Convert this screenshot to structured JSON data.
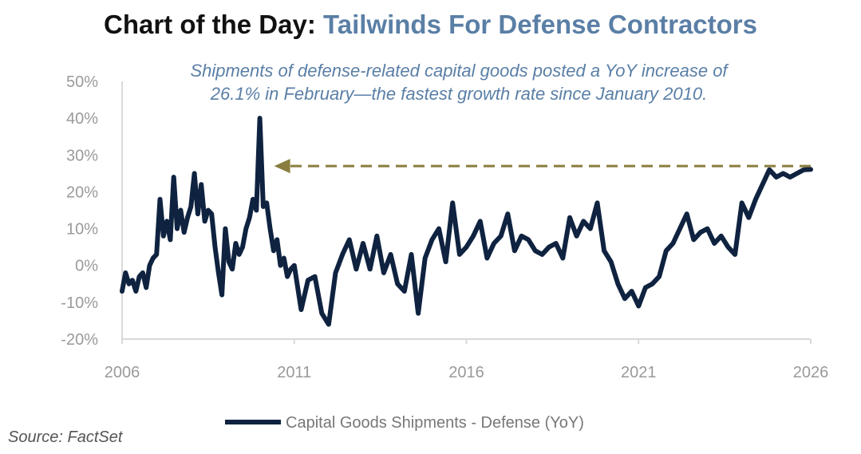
{
  "header": {
    "title_prefix": "Chart of the Day: ",
    "title_main": "Tailwinds For Defense Contractors",
    "subtitle_line1": "Shipments of defense-related capital goods posted a YoY increase of",
    "subtitle_line2": "26.1% in February—the fastest growth rate since January 2010."
  },
  "source": "Source: FactSet",
  "colors": {
    "series": "#0f2340",
    "annotation_arrow": "#8a7d3e",
    "title_accent": "#5a7fa6",
    "axis": "#d9d9d9"
  },
  "chart_data": {
    "type": "line",
    "y_unit": "%",
    "ylim": [
      -20,
      50
    ],
    "yticks": [
      50,
      40,
      30,
      20,
      10,
      0,
      -10,
      -20
    ],
    "ytick_labels": [
      "50%",
      "40%",
      "30%",
      "20%",
      "10%",
      "0%",
      "-10%",
      "-20%"
    ],
    "xlim": [
      2006,
      2026
    ],
    "xticks": [
      2006,
      2011,
      2016,
      2021,
      2026
    ],
    "xtick_labels": [
      "2006",
      "2011",
      "2016",
      "2021",
      "2026"
    ],
    "grid": false,
    "legend": "bottom-center",
    "series": [
      {
        "name": "Capital Goods Shipments - Defense (YoY)",
        "x": [
          2006.0,
          2006.1,
          2006.2,
          2006.3,
          2006.4,
          2006.5,
          2006.6,
          2006.7,
          2006.8,
          2006.9,
          2007.0,
          2007.1,
          2007.2,
          2007.3,
          2007.4,
          2007.5,
          2007.6,
          2007.7,
          2007.8,
          2007.9,
          2008.0,
          2008.1,
          2008.2,
          2008.3,
          2008.4,
          2008.5,
          2008.6,
          2008.7,
          2008.8,
          2008.9,
          2009.0,
          2009.1,
          2009.2,
          2009.3,
          2009.4,
          2009.5,
          2009.6,
          2009.7,
          2009.8,
          2009.9,
          2010.0,
          2010.1,
          2010.2,
          2010.3,
          2010.4,
          2010.5,
          2010.6,
          2010.7,
          2010.8,
          2010.9,
          2011.0,
          2011.2,
          2011.4,
          2011.6,
          2011.8,
          2012.0,
          2012.2,
          2012.4,
          2012.6,
          2012.8,
          2013.0,
          2013.2,
          2013.4,
          2013.6,
          2013.8,
          2014.0,
          2014.2,
          2014.4,
          2014.6,
          2014.8,
          2015.0,
          2015.2,
          2015.4,
          2015.6,
          2015.8,
          2016.0,
          2016.2,
          2016.4,
          2016.6,
          2016.8,
          2017.0,
          2017.2,
          2017.4,
          2017.6,
          2017.8,
          2018.0,
          2018.2,
          2018.4,
          2018.6,
          2018.8,
          2019.0,
          2019.2,
          2019.4,
          2019.6,
          2019.8,
          2020.0,
          2020.2,
          2020.4,
          2020.6,
          2020.8,
          2021.0,
          2021.2,
          2021.4,
          2021.6,
          2021.8,
          2022.0,
          2022.2,
          2022.4,
          2022.6,
          2022.8,
          2023.0,
          2023.2,
          2023.4,
          2023.6,
          2023.8,
          2024.0,
          2024.2,
          2024.4,
          2024.6,
          2024.8,
          2025.0,
          2025.2,
          2025.4,
          2025.6,
          2025.8,
          2026.0
        ],
        "values": [
          -7,
          -2,
          -5,
          -4,
          -7,
          -3,
          -2,
          -6,
          0,
          2,
          3,
          18,
          8,
          12,
          7,
          24,
          10,
          15,
          9,
          13,
          16,
          25,
          14,
          22,
          12,
          15,
          14,
          5,
          -2,
          -8,
          10,
          1,
          -1,
          6,
          3,
          5,
          10,
          13,
          18,
          15,
          40,
          16,
          17,
          10,
          4,
          7,
          0,
          2,
          -3,
          -1,
          0,
          -12,
          -4,
          -3,
          -13,
          -16,
          -2,
          3,
          7,
          -1,
          6,
          -1,
          8,
          -2,
          3,
          -5,
          -7,
          3,
          -13,
          2,
          7,
          10,
          1,
          17,
          3,
          5,
          8,
          12,
          2,
          6,
          8,
          14,
          4,
          8,
          7,
          4,
          3,
          5,
          6,
          2,
          13,
          8,
          12,
          10,
          17,
          4,
          1,
          -5,
          -9,
          -7,
          -11,
          -6,
          -5,
          -3,
          4,
          6,
          10,
          14,
          7,
          9,
          10,
          6,
          8,
          5,
          3,
          17,
          13,
          18,
          22,
          26,
          24,
          25,
          24,
          25,
          26,
          26.1
        ]
      }
    ],
    "annotation": {
      "type": "dashed-arrow",
      "from": {
        "x": 2026,
        "y": 27
      },
      "to": {
        "x": 2010.0,
        "y": 27
      }
    }
  }
}
